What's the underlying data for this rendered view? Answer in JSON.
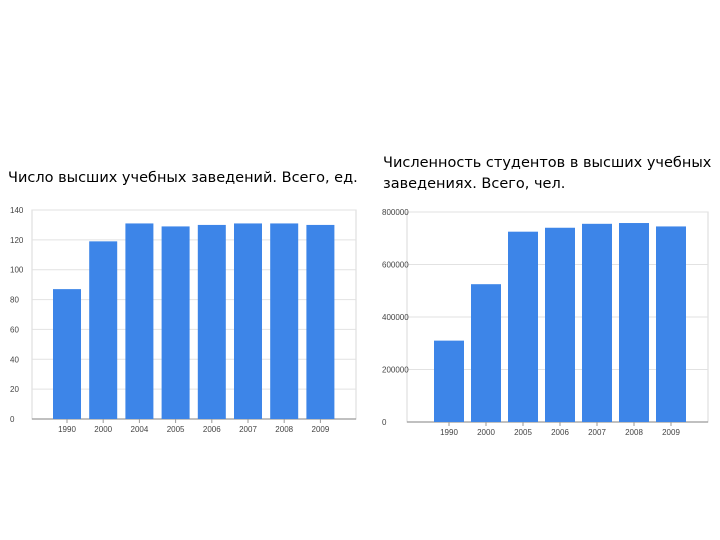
{
  "chart_data": [
    {
      "type": "bar",
      "title": "Число высших учебных заведений. Всего, ед.",
      "categories": [
        "1990",
        "2000",
        "2004",
        "2005",
        "2006",
        "2007",
        "2008",
        "2009"
      ],
      "values": [
        87,
        119,
        131,
        129,
        130,
        131,
        131,
        130
      ],
      "yticks": [
        "0",
        "20",
        "40",
        "60",
        "80",
        "100",
        "120",
        "140"
      ],
      "ylim": [
        0,
        140
      ],
      "grid": true,
      "color": "#3d85e8"
    },
    {
      "type": "bar",
      "title": "Численность студентов в высших учебных заведениях. Всего, чел.",
      "categories": [
        "1990",
        "2000",
        "2005",
        "2006",
        "2007",
        "2008",
        "2009"
      ],
      "values": [
        310000,
        525000,
        725000,
        740000,
        755000,
        758000,
        745000
      ],
      "yticks": [
        "0",
        "200000",
        "400000",
        "600000",
        "800000"
      ],
      "ylim": [
        0,
        800000
      ],
      "grid": true,
      "color": "#3d85e8"
    }
  ]
}
